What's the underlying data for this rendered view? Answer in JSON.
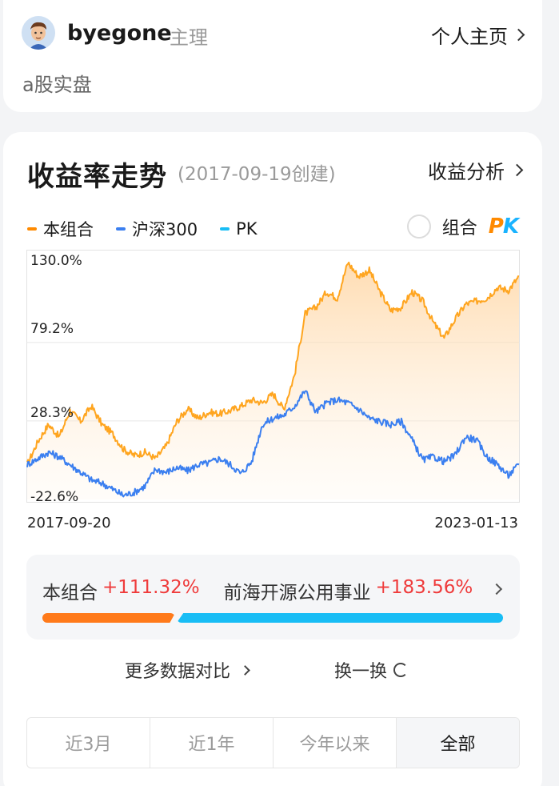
{
  "header": {
    "username": "byegone",
    "role": "主理",
    "profile_link": "个人主页",
    "description": "a股实盘"
  },
  "returns": {
    "title": "收益率走势",
    "created": "(2017-09-19创建)",
    "analysis_link": "收益分析",
    "legend": [
      {
        "label": "本组合",
        "color": "#ff8a00"
      },
      {
        "label": "沪深300",
        "color": "#3b7ff0"
      },
      {
        "label": "PK",
        "color": "#18bdf5"
      }
    ],
    "pk_toggle": {
      "label": "组合",
      "p": "P",
      "k": "K"
    }
  },
  "chart_data": {
    "type": "line",
    "ylabels": [
      "130.0%",
      "79.2%",
      "28.3%",
      "-22.6%"
    ],
    "ylim": [
      -22.6,
      130.0
    ],
    "x_start": "2017-09-20",
    "x_end": "2023-01-13",
    "series": [
      {
        "name": "本组合",
        "color": "#ffa51f",
        "values": [
          0,
          15,
          26,
          18,
          35,
          28,
          38,
          26,
          20,
          10,
          6,
          8,
          4,
          12,
          28,
          36,
          30,
          34,
          33,
          35,
          38,
          42,
          40,
          46,
          36,
          58,
          98,
          102,
          112,
          108,
          131,
          122,
          126,
          112,
          100,
          102,
          112,
          106,
          92,
          82,
          94,
          104,
          106,
          108,
          115,
          113,
          122
        ]
      },
      {
        "name": "沪深300",
        "color": "#3b7ff0",
        "values": [
          0,
          4,
          8,
          5,
          0,
          -5,
          -10,
          -12,
          -16,
          -20,
          -18,
          -14,
          -3,
          -5,
          -2,
          -4,
          0,
          1,
          4,
          0,
          -6,
          2,
          26,
          30,
          32,
          38,
          48,
          34,
          40,
          42,
          40,
          36,
          30,
          28,
          26,
          28,
          16,
          3,
          5,
          2,
          6,
          18,
          16,
          5,
          0,
          -7,
          0
        ]
      }
    ]
  },
  "compare": {
    "a_label": "本组合",
    "a_value": "+111.32%",
    "b_label": "前海开源公用事业",
    "b_value": "+183.56%"
  },
  "actions": {
    "more": "更多数据对比",
    "refresh": "换一换"
  },
  "tabs": [
    {
      "label": "近3月",
      "active": false
    },
    {
      "label": "近1年",
      "active": false
    },
    {
      "label": "今年以来",
      "active": false
    },
    {
      "label": "全部",
      "active": true
    }
  ]
}
